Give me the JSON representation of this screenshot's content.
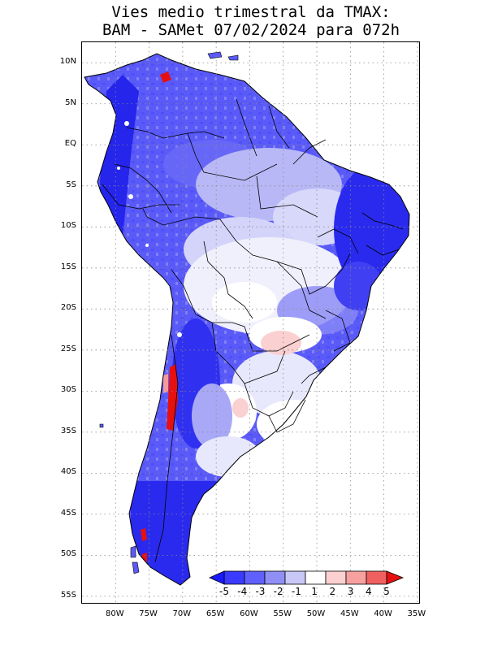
{
  "title": {
    "line1": "Vies medio trimestral da TMAX:",
    "line2": "BAM - SAMet 07/02/2024  para 072h"
  },
  "map": {
    "lat_labels": [
      "10N",
      "5N",
      "EQ",
      "5S",
      "10S",
      "15S",
      "20S",
      "25S",
      "30S",
      "35S",
      "40S",
      "45S",
      "50S",
      "55S"
    ],
    "lon_labels": [
      "80W",
      "75W",
      "70W",
      "65W",
      "60W",
      "55W",
      "50W",
      "45W",
      "40W",
      "35W"
    ],
    "lat_range": [
      -56,
      12.5
    ],
    "lon_range": [
      -85,
      -34.5
    ],
    "gridlines": "dotted"
  },
  "colorbar": {
    "labels": [
      "-5",
      "-4",
      "-3",
      "-2",
      "-1",
      "1",
      "2",
      "3",
      "4",
      "5"
    ],
    "colors": [
      "#1a1aff",
      "#3b3bff",
      "#6060ff",
      "#8f8ff5",
      "#c8c8f6",
      "#ffffff",
      "#fcd0d0",
      "#f7a0a0",
      "#f06060",
      "#e61010"
    ]
  },
  "colors": {
    "ocean": "#ffffff",
    "border": "#000000",
    "deep_negative": "#2020ee",
    "mid_negative": "#6a6af8",
    "light_negative": "#c8c8f6",
    "positive": "#e61010"
  }
}
